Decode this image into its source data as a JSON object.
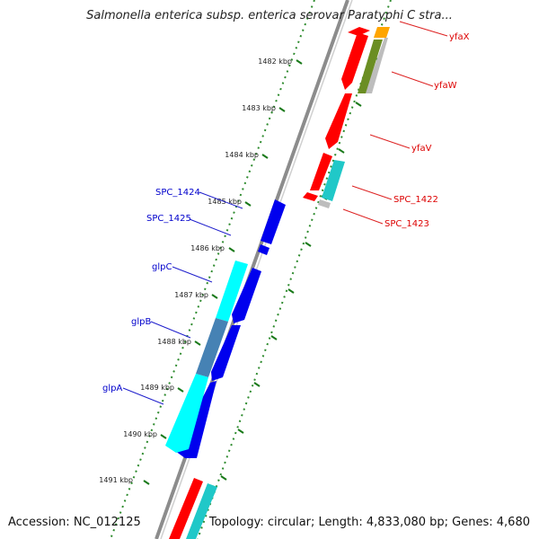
{
  "title": "Salmonella enterica subsp. enterica serovar Paratyphi C stra...",
  "footer": {
    "accession": "Accession: NC_012125",
    "topology": "Topology: circular; Length: 4,833,080 bp; Genes: 4,680"
  },
  "colors": {
    "backbone": "#8a8a8a",
    "gene_red": "#ff0000",
    "gene_blue": "#0000ee",
    "gene_cyan": "#00ffff",
    "gene_steelblue": "#4682b4",
    "gene_olive": "#6b8e23",
    "gene_orange": "#ffa500",
    "gene_grey": "#bdbdbd",
    "label_blue": "#0000cc",
    "label_red": "#dd0000",
    "tick_green": "#1a7a1a"
  },
  "ruler": {
    "ticks": [
      "1482 kbp",
      "1483 kbp",
      "1484 kbp",
      "1485 kbp",
      "1486 kbp",
      "1487 kbp",
      "1488 kbp",
      "1489 kbp",
      "1490 kbp",
      "1491 kbp"
    ]
  },
  "genes_left": [
    "SPC_1424",
    "SPC_1425",
    "glpC",
    "glpB",
    "glpA"
  ],
  "genes_right": [
    "yfaX",
    "yfaW",
    "yfaV",
    "SPC_1422",
    "SPC_1423"
  ]
}
